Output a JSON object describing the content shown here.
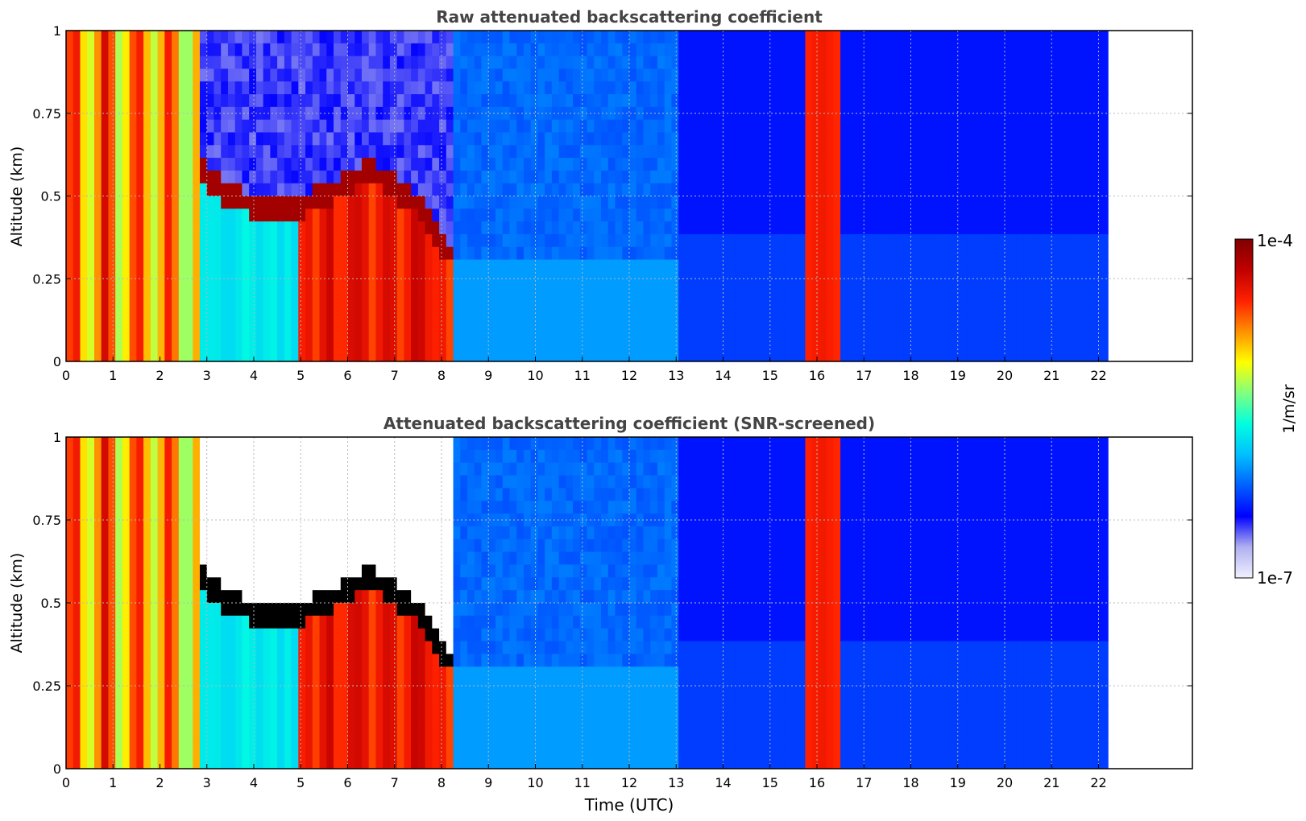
{
  "chart_data": [
    {
      "type": "heatmap",
      "title": "Raw attenuated backscattering coefficient",
      "xlabel": "",
      "ylabel": "Altitude (km)",
      "xlim": [
        0,
        24
      ],
      "ylim": [
        0,
        1
      ],
      "xticks": [
        "0",
        "1",
        "2",
        "3",
        "4",
        "5",
        "6",
        "7",
        "8",
        "9",
        "10",
        "11",
        "12",
        "13",
        "14",
        "15",
        "16",
        "17",
        "18",
        "19",
        "20",
        "21",
        "22"
      ],
      "yticks": [
        "0",
        "0.25",
        "0.5",
        "0.75",
        "1"
      ],
      "data_end_time": 22.2,
      "grid": true,
      "features": [
        {
          "name": "boundary-layer-top",
          "points": [
            [
              2.9,
              0.57
            ],
            [
              3.5,
              0.5
            ],
            [
              4.5,
              0.45
            ],
            [
              5.5,
              0.5
            ],
            [
              6.5,
              0.58
            ],
            [
              7.5,
              0.47
            ],
            [
              8.3,
              0.3
            ]
          ]
        },
        {
          "name": "fog-column",
          "start": 15.7,
          "end": 16.5
        },
        {
          "name": "surface-aerosol-plume",
          "start": 5.0,
          "end": 8.3
        }
      ]
    },
    {
      "type": "heatmap",
      "title": "Attenuated backscattering coefficient (SNR-screened)",
      "xlabel": "Time (UTC)",
      "ylabel": "Altitude (km)",
      "xlim": [
        0,
        24
      ],
      "ylim": [
        0,
        1
      ],
      "xticks": [
        "0",
        "1",
        "2",
        "3",
        "4",
        "5",
        "6",
        "7",
        "8",
        "9",
        "10",
        "11",
        "12",
        "13",
        "14",
        "15",
        "16",
        "17",
        "18",
        "19",
        "20",
        "21",
        "22"
      ],
      "yticks": [
        "0",
        "0.25",
        "0.5",
        "0.75",
        "1"
      ],
      "data_end_time": 22.2,
      "grid": true
    }
  ],
  "colorbar": {
    "max_label": "1e-4",
    "min_label": "1e-7",
    "unit_label": "1/m/sr",
    "colors": [
      "#f0f0ff",
      "#b0b0f0",
      "#0000ff",
      "#0060ff",
      "#00c0ff",
      "#00ffe0",
      "#80ff80",
      "#ffff00",
      "#ff9000",
      "#ff2000",
      "#c00000",
      "#800000"
    ]
  }
}
